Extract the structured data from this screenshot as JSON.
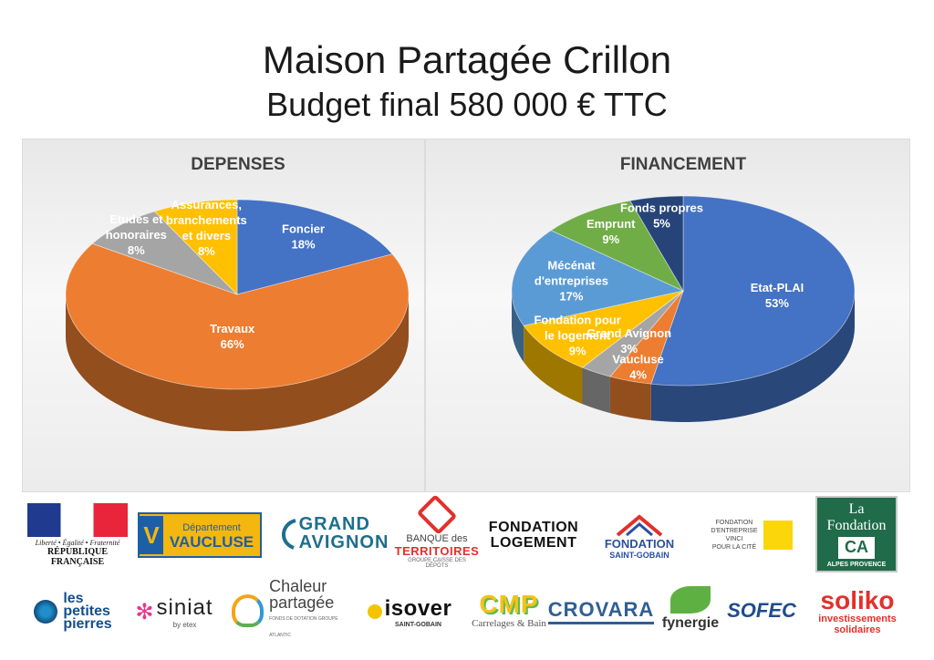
{
  "page": {
    "title_line1": "Maison Partagée Crillon",
    "title_line2": "Budget final 580 000 € TTC"
  },
  "chart_data": [
    {
      "type": "pie",
      "title": "DEPENSES",
      "unit": "%",
      "slices": [
        {
          "label": "Foncier",
          "value": 18,
          "color": "#4472c4"
        },
        {
          "label": "Travaux",
          "value": 66,
          "color": "#ed7d31"
        },
        {
          "label": "Etudes et honoraires",
          "value": 8,
          "color": "#a5a5a5"
        },
        {
          "label": "Assurances, branchements et divers",
          "value": 8,
          "color": "#ffc000"
        }
      ],
      "legend": "none"
    },
    {
      "type": "pie",
      "title": "FINANCEMENT",
      "unit": "%",
      "slices": [
        {
          "label": "Etat-PLAI",
          "value": 53,
          "color": "#4472c4"
        },
        {
          "label": "Vaucluse",
          "value": 4,
          "color": "#ed7d31"
        },
        {
          "label": "Grand Avignon",
          "value": 3,
          "color": "#a5a5a5"
        },
        {
          "label": "Fondation pour le logement",
          "value": 9,
          "color": "#ffc000"
        },
        {
          "label": "Mécénat d'entreprises",
          "value": 17,
          "color": "#5b9bd5"
        },
        {
          "label": "Emprunt",
          "value": 9,
          "color": "#70ad47"
        },
        {
          "label": "Fonds propres",
          "value": 5,
          "color": "#264478"
        }
      ],
      "legend": "none"
    }
  ],
  "logos": {
    "rf": {
      "motto": "Liberté • Égalité • Fraternité",
      "name": "RÉPUBLIQUE FRANÇAISE"
    },
    "vaucluse": {
      "line1": "Département",
      "line2": "VAUCLUSE"
    },
    "grand_avignon": {
      "line1": "GRAND",
      "line2": "AVIGNON"
    },
    "banque": {
      "line1": "BANQUE des",
      "line2": "TERRITOIRES",
      "line3": "GROUPE CAISSE DES DÉPÔTS"
    },
    "fondation_logement": {
      "line1": "FONDATION",
      "line2": "LOGEMENT"
    },
    "fondation_sg": {
      "line1": "FONDATION",
      "line2": "SAINT-GOBAIN"
    },
    "vinci": {
      "line1": "FONDATION",
      "line2": "D'ENTREPRISE",
      "line3": "VINCI",
      "line4": "POUR LA CITÉ"
    },
    "la_fondation": {
      "line1": "La",
      "line2": "Fondation",
      "mark": "CA",
      "line3": "ALPES PROVENCE"
    },
    "petites_pierres": {
      "line1": "les",
      "line2": "petites",
      "line3": "pierres"
    },
    "siniat": {
      "name": "siniat",
      "by": "by etex"
    },
    "chaleur": {
      "line1": "Chaleur",
      "line2": "partagée",
      "line3": "FONDS DE DOTATION GROUPE ATLANTIC"
    },
    "isover": {
      "name": "isover",
      "sub": "SAINT-GOBAIN"
    },
    "cmp": {
      "name": "CMP",
      "sub": "Carrelages & Bain"
    },
    "crovara": {
      "name": "CROVARA"
    },
    "fynergie": {
      "name": "fynergie"
    },
    "sofec": {
      "name": "SOFEC"
    },
    "soliko": {
      "name": "soliko",
      "line1": "investissements",
      "line2": "solidaires"
    }
  }
}
